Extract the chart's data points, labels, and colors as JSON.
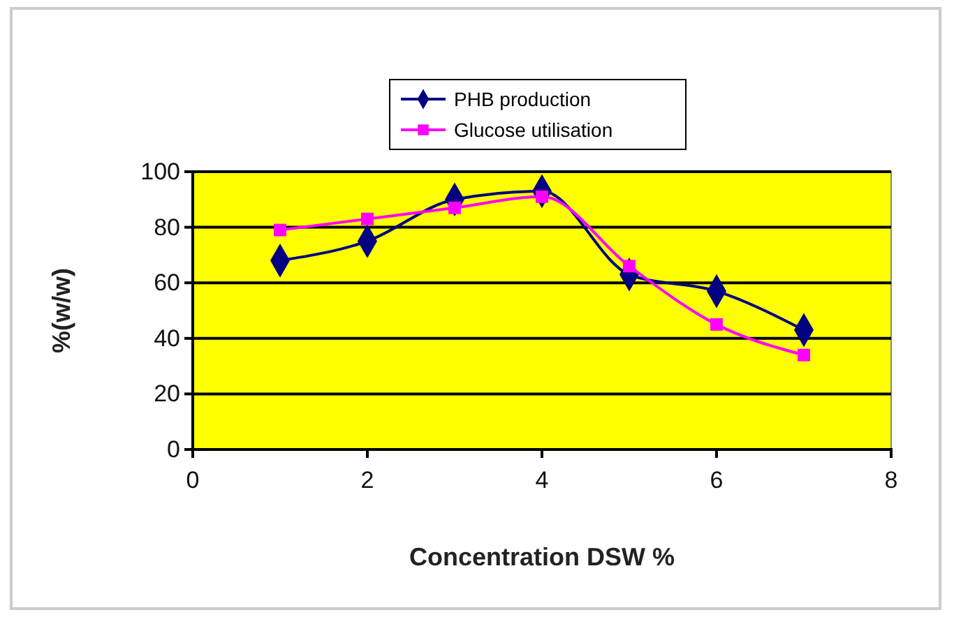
{
  "chart_data": {
    "type": "line",
    "xlabel": "Concentration DSW %",
    "ylabel": "%(w/w)",
    "x": [
      1,
      2,
      3,
      4,
      5,
      6,
      7
    ],
    "series": [
      {
        "name": "PHB production",
        "color": "#000080",
        "marker": "diamond",
        "values": [
          68,
          75,
          90,
          93,
          63,
          57,
          43
        ]
      },
      {
        "name": "Glucose utilisation",
        "color": "#ff00ff",
        "marker": "square",
        "values": [
          79,
          83,
          87,
          91,
          66,
          45,
          34
        ]
      }
    ],
    "xlim": [
      0,
      8
    ],
    "xticks": [
      0,
      2,
      4,
      6,
      8
    ],
    "ylim": [
      0,
      100
    ],
    "yticks": [
      0,
      20,
      40,
      60,
      80,
      100
    ],
    "grid": "y",
    "legend": "top"
  }
}
